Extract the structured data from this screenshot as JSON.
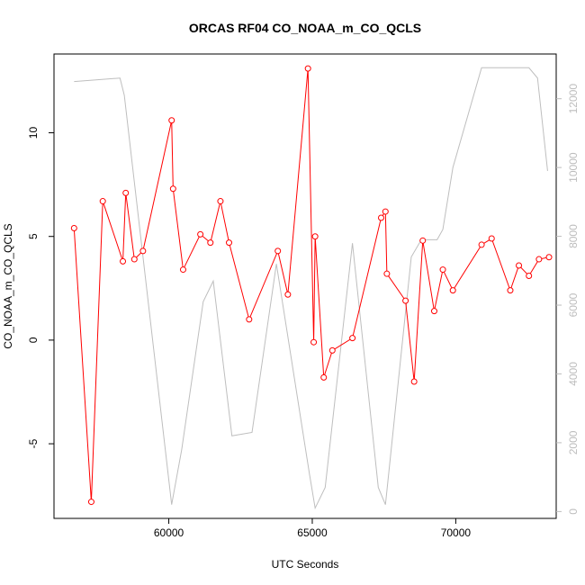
{
  "chart_data": {
    "type": "line",
    "title": "ORCAS RF04 CO_NOAA_m_CO_QCLS",
    "xlabel": "UTC Seconds",
    "ylabel": "CO_NOAA_m_CO_QCLS",
    "xlim": [
      56000,
      73500
    ],
    "ylim": [
      -8.6,
      13.8
    ],
    "y2lim": [
      -200,
      13300
    ],
    "x_ticks": [
      60000,
      65000,
      70000
    ],
    "y_ticks": [
      -5,
      0,
      5,
      10
    ],
    "y2_ticks": [
      0,
      2000,
      4000,
      6000,
      8000,
      10000,
      12000
    ],
    "grid": false,
    "legend": "none",
    "colors": {
      "series": "#ff0000",
      "secondary": "#bebebe",
      "axes": "#000000",
      "right_axis": "#bdbdbd"
    },
    "series": [
      {
        "color": "#ff0000",
        "style": "line+open-circles",
        "x": [
          56700,
          57300,
          57700,
          58400,
          58500,
          58800,
          59100,
          60100,
          60150,
          60500,
          61100,
          61450,
          61800,
          62100,
          62800,
          63800,
          64150,
          64850,
          65050,
          65100,
          65400,
          65700,
          66400,
          67400,
          67550,
          67600,
          68250,
          68550,
          68850,
          69250,
          69550,
          69900,
          70900,
          71250,
          71900,
          72200,
          72550,
          72900,
          73250
        ],
        "values": [
          5.4,
          -7.8,
          6.7,
          3.8,
          7.1,
          3.9,
          4.3,
          10.6,
          7.3,
          3.4,
          5.1,
          4.7,
          6.7,
          4.7,
          1.0,
          4.3,
          2.2,
          13.1,
          -0.1,
          5.0,
          -1.8,
          -0.5,
          0.1,
          5.9,
          6.2,
          3.2,
          1.9,
          -2.0,
          4.8,
          1.4,
          3.4,
          2.4,
          4.6,
          4.9,
          2.4,
          3.6,
          3.1,
          3.9,
          4.0
        ]
      },
      {
        "color": "#bebebe",
        "axis": "right",
        "style": "line",
        "x": [
          56700,
          58300,
          58450,
          60100,
          60450,
          61200,
          61550,
          62200,
          62900,
          63750,
          64900,
          65100,
          65450,
          66400,
          67300,
          67550,
          68450,
          68800,
          69350,
          69550,
          69900,
          70900,
          72550,
          72850,
          73200
        ],
        "values": [
          12500,
          12600,
          12100,
          200,
          1800,
          6100,
          6700,
          2200,
          2300,
          7200,
          1100,
          100,
          700,
          7800,
          700,
          200,
          7400,
          7900,
          7900,
          8200,
          10000,
          12900,
          12900,
          12600,
          9900
        ]
      }
    ]
  }
}
